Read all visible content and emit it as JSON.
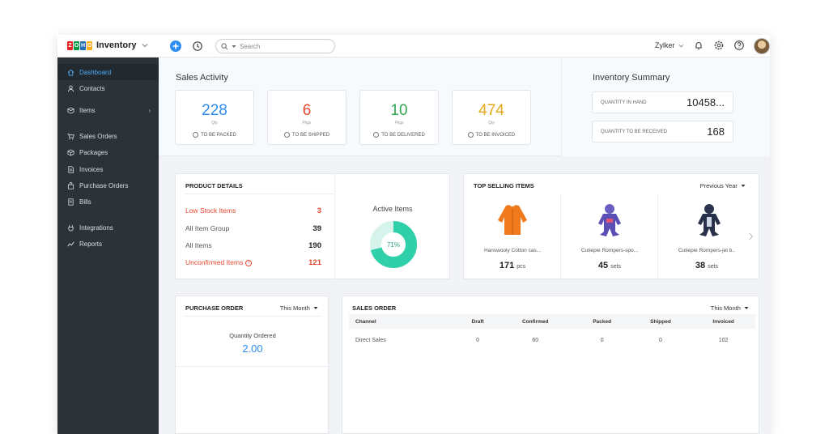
{
  "brand": {
    "letters": [
      "Z",
      "O",
      "H",
      "O"
    ],
    "colors": [
      "#e42527",
      "#089949",
      "#226db4",
      "#f9b21d"
    ],
    "product": "Inventory"
  },
  "topbar": {
    "search_placeholder": "Search",
    "org": "Zylker"
  },
  "sidebar": {
    "items": [
      {
        "label": "Dashboard",
        "icon": "home-icon"
      },
      {
        "label": "Contacts",
        "icon": "person-icon"
      },
      {
        "label": "Items",
        "icon": "tag-icon",
        "arrow": "›"
      },
      {
        "label": "Sales Orders",
        "icon": "cart-icon"
      },
      {
        "label": "Packages",
        "icon": "box-icon"
      },
      {
        "label": "Invoices",
        "icon": "doc-icon"
      },
      {
        "label": "Purchase Orders",
        "icon": "bag-icon"
      },
      {
        "label": "Bills",
        "icon": "bill-icon"
      },
      {
        "label": "Integrations",
        "icon": "plug-icon"
      },
      {
        "label": "Reports",
        "icon": "chart-icon"
      }
    ]
  },
  "sales_activity": {
    "title": "Sales Activity",
    "cards": [
      {
        "value": "228",
        "unit": "Qty",
        "label": "TO BE PACKED",
        "color": "#2d8cf0"
      },
      {
        "value": "6",
        "unit": "Pkgs",
        "label": "TO BE SHIPPED",
        "color": "#e8472d"
      },
      {
        "value": "10",
        "unit": "Pkgs",
        "label": "TO BE DELIVERED",
        "color": "#2fa84f"
      },
      {
        "value": "474",
        "unit": "Qty",
        "label": "TO BE INVOICED",
        "color": "#e6a817"
      }
    ]
  },
  "inventory_summary": {
    "title": "Inventory Summary",
    "rows": [
      {
        "label": "QUANTITY IN HAND",
        "value": "10458..."
      },
      {
        "label": "QUANTITY TO BE RECEIVED",
        "value": "168"
      }
    ]
  },
  "product_details": {
    "title": "PRODUCT DETAILS",
    "rows": [
      {
        "label": "Low Stock Items",
        "value": "3",
        "highlight": true
      },
      {
        "label": "All Item Group",
        "value": "39",
        "highlight": false
      },
      {
        "label": "All Items",
        "value": "190",
        "highlight": false
      },
      {
        "label": "Unconfirmed Items",
        "value": "121",
        "highlight": true
      }
    ],
    "active_items": {
      "title": "Active Items",
      "percent_label": "71%",
      "fraction": 0.71
    }
  },
  "top_selling": {
    "title": "TOP SELLING ITEMS",
    "period": "Previous Year",
    "items": [
      {
        "name": "Hanswooly Cotton cas...",
        "qty": "171",
        "unit": "pcs"
      },
      {
        "name": "Cutiepie Rompers-spo...",
        "qty": "45",
        "unit": "sets"
      },
      {
        "name": "Cutiepie Rompers-jet b..",
        "qty": "38",
        "unit": "sets"
      }
    ]
  },
  "purchase_order": {
    "title": "PURCHASE ORDER",
    "period": "This Month",
    "label": "Quantity Ordered",
    "value": "2.00"
  },
  "sales_order": {
    "title": "SALES ORDER",
    "period": "This Month",
    "columns": [
      "Channel",
      "Draft",
      "Confirmed",
      "Packed",
      "Shipped",
      "Invoiced"
    ],
    "rows": [
      [
        "Direct Sales",
        "0",
        "60",
        "0",
        "0",
        "102"
      ]
    ]
  }
}
